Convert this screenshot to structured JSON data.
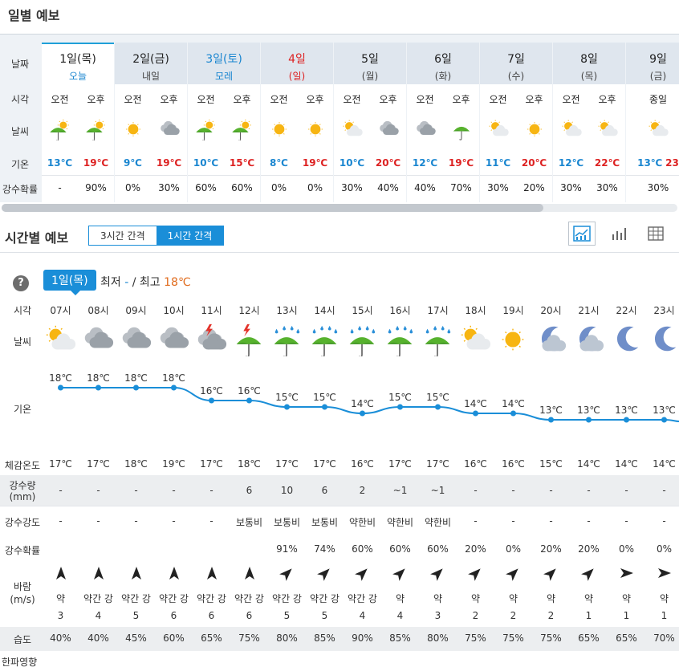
{
  "daily": {
    "title": "일별 예보",
    "row_labels": [
      "날짜",
      "시각",
      "날씨",
      "기온",
      "강수확률"
    ],
    "days": [
      {
        "name": "1일(목)",
        "sub": "오늘",
        "type": "today",
        "periods": [
          "오전",
          "오후"
        ],
        "icons": [
          "sun-rain-icon",
          "sun-rain-icon"
        ],
        "temps": [
          "13℃",
          "19℃"
        ],
        "precip": [
          "-",
          "90%"
        ]
      },
      {
        "name": "2일(금)",
        "sub": "내일",
        "type": "weekday",
        "periods": [
          "오전",
          "오후"
        ],
        "icons": [
          "sun-icon",
          "cloud-icon"
        ],
        "temps": [
          "9℃",
          "19℃"
        ],
        "precip": [
          "0%",
          "30%"
        ]
      },
      {
        "name": "3일(토)",
        "sub": "모레",
        "type": "sat",
        "periods": [
          "오전",
          "오후"
        ],
        "icons": [
          "sun-rain-icon",
          "sun-rain-icon"
        ],
        "temps": [
          "10℃",
          "15℃"
        ],
        "precip": [
          "60%",
          "60%"
        ]
      },
      {
        "name": "4일",
        "sub": "(일)",
        "type": "sun",
        "periods": [
          "오전",
          "오후"
        ],
        "icons": [
          "sun-icon",
          "sun-icon"
        ],
        "temps": [
          "8℃",
          "19℃"
        ],
        "precip": [
          "0%",
          "0%"
        ]
      },
      {
        "name": "5일",
        "sub": "(월)",
        "type": "weekday",
        "periods": [
          "오전",
          "오후"
        ],
        "icons": [
          "partly-cloudy-icon",
          "cloud-icon"
        ],
        "temps": [
          "10℃",
          "20℃"
        ],
        "precip": [
          "30%",
          "40%"
        ]
      },
      {
        "name": "6일",
        "sub": "(화)",
        "type": "weekday",
        "periods": [
          "오전",
          "오후"
        ],
        "icons": [
          "cloud-icon",
          "umbrella-icon"
        ],
        "temps": [
          "12℃",
          "19℃"
        ],
        "precip": [
          "40%",
          "70%"
        ]
      },
      {
        "name": "7일",
        "sub": "(수)",
        "type": "weekday",
        "periods": [
          "오전",
          "오후"
        ],
        "icons": [
          "partly-cloudy-icon",
          "sun-icon"
        ],
        "temps": [
          "11℃",
          "20℃"
        ],
        "precip": [
          "30%",
          "20%"
        ]
      },
      {
        "name": "8일",
        "sub": "(목)",
        "type": "weekday",
        "periods": [
          "오전",
          "오후"
        ],
        "icons": [
          "partly-cloudy-icon",
          "partly-cloudy-icon"
        ],
        "temps": [
          "12℃",
          "22℃"
        ],
        "precip": [
          "30%",
          "30%"
        ]
      },
      {
        "name": "9일",
        "sub": "(금)",
        "type": "weekday",
        "periods": [
          "종일"
        ],
        "icons": [
          "partly-cloudy-icon"
        ],
        "temps": [
          "13℃",
          "23"
        ],
        "precip": [
          "30%"
        ]
      }
    ]
  },
  "hourly": {
    "title": "시간별 예보",
    "toggle": [
      "3시간 간격",
      "1시간 간격"
    ],
    "help": "?",
    "day_tag": "1일(목)",
    "min_label": "최저",
    "min_value": "-",
    "separator": "/",
    "max_label": "최고",
    "max_value": "18℃",
    "row_labels": {
      "time": "시각",
      "weather": "날씨",
      "temp": "기온",
      "feels": "체감온도",
      "rain": "강수량",
      "rain_unit": "(mm)",
      "intensity": "강수강도",
      "prob": "강수확률",
      "wind": "바람",
      "wind_unit": "(m/s)",
      "humidity": "습도",
      "cold": "한파영향"
    },
    "times": [
      "07시",
      "08시",
      "09시",
      "10시",
      "11시",
      "12시",
      "13시",
      "14시",
      "15시",
      "16시",
      "17시",
      "18시",
      "19시",
      "20시",
      "21시",
      "22시",
      "23시"
    ],
    "icons": [
      "partly-cloudy-icon",
      "cloud-icon",
      "cloud-icon",
      "cloud-icon",
      "thunder-cloud-icon",
      "thunder-umbrella-icon",
      "rain-umbrella-icon",
      "rain-umbrella-icon",
      "rain-umbrella-icon",
      "rain-umbrella-icon",
      "rain-umbrella-icon",
      "partly-cloudy-icon",
      "sun-icon",
      "moon-cloud-icon",
      "moon-cloud-icon",
      "moon-icon",
      "moon-icon"
    ],
    "temp_labels": [
      "18℃",
      "18℃",
      "18℃",
      "18℃",
      "16℃",
      "16℃",
      "15℃",
      "15℃",
      "14℃",
      "15℃",
      "15℃",
      "14℃",
      "14℃",
      "13℃",
      "13℃",
      "13℃",
      "13℃"
    ],
    "feels": [
      "17℃",
      "17℃",
      "18℃",
      "19℃",
      "17℃",
      "18℃",
      "17℃",
      "17℃",
      "16℃",
      "17℃",
      "17℃",
      "16℃",
      "16℃",
      "15℃",
      "14℃",
      "14℃",
      "14℃"
    ],
    "rain": [
      "-",
      "-",
      "-",
      "-",
      "-",
      "6",
      "10",
      "6",
      "2",
      "~1",
      "~1",
      "-",
      "-",
      "-",
      "-",
      "-",
      "-"
    ],
    "intensity": [
      "-",
      "-",
      "-",
      "-",
      "-",
      "보통비",
      "보통비",
      "보통비",
      "약한비",
      "약한비",
      "약한비",
      "-",
      "-",
      "-",
      "-",
      "-",
      "-"
    ],
    "prob": [
      "",
      "",
      "",
      "",
      "",
      "",
      "91%",
      "74%",
      "60%",
      "60%",
      "60%",
      "20%",
      "0%",
      "20%",
      "20%",
      "0%",
      "0%"
    ],
    "wind_dir_deg": [
      0,
      0,
      0,
      0,
      0,
      0,
      45,
      45,
      45,
      45,
      45,
      45,
      45,
      45,
      45,
      90,
      90
    ],
    "wind_strength": [
      "약",
      "약간 강",
      "약간 강",
      "약간 강",
      "약간 강",
      "약간 강",
      "약간 강",
      "약간 강",
      "약간 강",
      "약",
      "약",
      "약",
      "약",
      "약",
      "약",
      "약",
      "약"
    ],
    "wind_speed": [
      "3",
      "4",
      "5",
      "6",
      "6",
      "6",
      "5",
      "5",
      "4",
      "4",
      "3",
      "2",
      "2",
      "2",
      "1",
      "1",
      "1"
    ],
    "humidity": [
      "40%",
      "40%",
      "45%",
      "60%",
      "65%",
      "75%",
      "80%",
      "85%",
      "90%",
      "85%",
      "80%",
      "75%",
      "75%",
      "75%",
      "65%",
      "65%",
      "70%"
    ]
  },
  "chart_data": {
    "type": "line",
    "categories": [
      "07시",
      "08시",
      "09시",
      "10시",
      "11시",
      "12시",
      "13시",
      "14시",
      "15시",
      "16시",
      "17시",
      "18시",
      "19시",
      "20시",
      "21시",
      "22시",
      "23시"
    ],
    "series": [
      {
        "values": [
          18,
          18,
          18,
          18,
          16,
          16,
          15,
          15,
          14,
          15,
          15,
          14,
          14,
          13,
          13,
          13,
          13
        ]
      }
    ],
    "ylabel": "기온",
    "color": "#1a8ed8"
  }
}
